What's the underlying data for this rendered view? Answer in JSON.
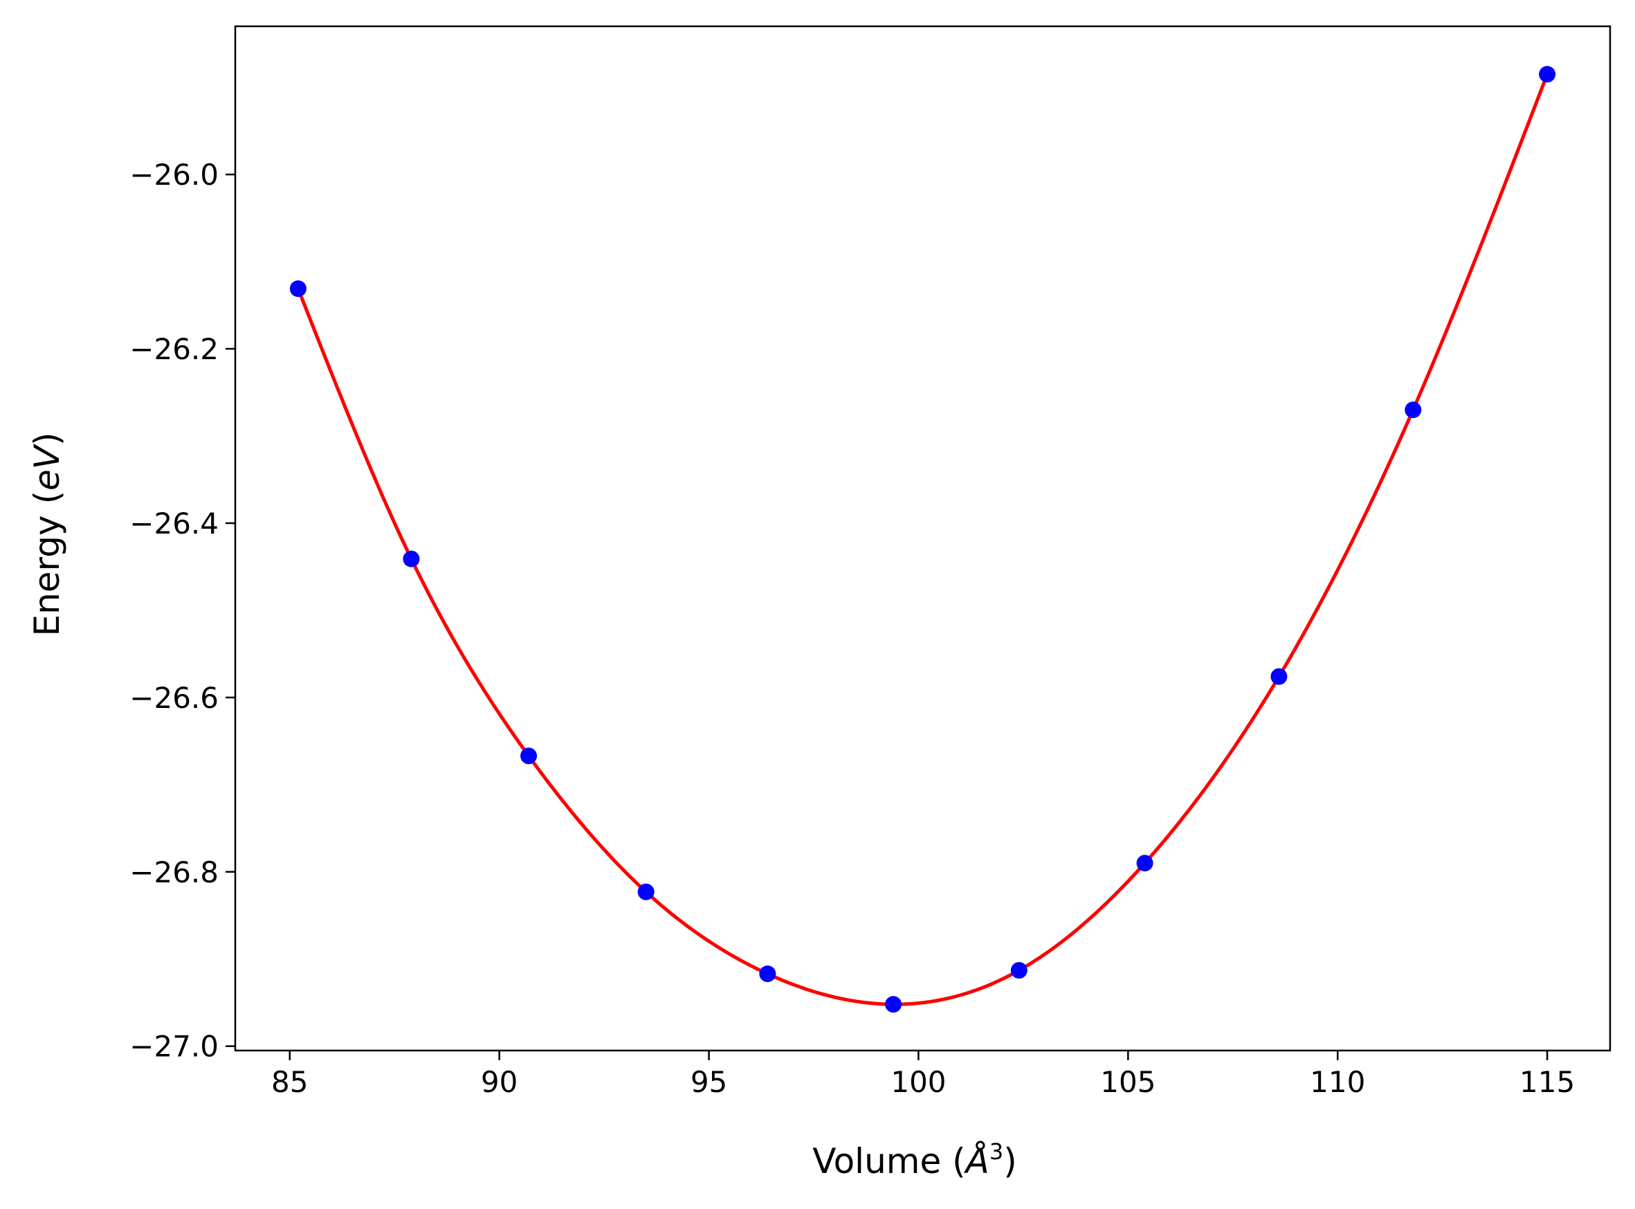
{
  "chart_data": {
    "type": "scatter",
    "title": "",
    "xlabel": {
      "prefix": "Volume (",
      "symbol": "Å",
      "superscript": "3",
      "suffix": ")"
    },
    "ylabel": {
      "prefix": "Energy (",
      "symbol": "eV",
      "suffix": ")"
    },
    "xlim": [
      83.7,
      116.5
    ],
    "ylim": [
      -27.005,
      -25.83
    ],
    "xticks": [
      85,
      90,
      95,
      100,
      105,
      110,
      115
    ],
    "xtick_labels": [
      "85",
      "90",
      "95",
      "100",
      "105",
      "110",
      "115"
    ],
    "yticks": [
      -26.0,
      -26.2,
      -26.4,
      -26.6,
      -26.8,
      -27.0
    ],
    "ytick_labels": [
      "−26.0",
      "−26.2",
      "−26.4",
      "−26.6",
      "−26.8",
      "−27.0"
    ],
    "grid": false,
    "series": [
      {
        "kind": "scatter",
        "color": "#0000ff",
        "x": [
          85.2,
          87.9,
          90.7,
          93.5,
          96.4,
          99.4,
          102.4,
          105.4,
          108.6,
          111.8,
          115.0
        ],
        "y": [
          -26.131,
          -26.441,
          -26.667,
          -26.823,
          -26.917,
          -26.952,
          -26.913,
          -26.79,
          -26.576,
          -26.27,
          -25.885
        ]
      },
      {
        "kind": "line",
        "color": "#ff0000",
        "x": [
          85.2,
          87.9,
          90.7,
          93.5,
          96.4,
          99.4,
          102.4,
          105.4,
          108.6,
          111.8,
          115.0
        ],
        "y": [
          -26.131,
          -26.441,
          -26.667,
          -26.823,
          -26.917,
          -26.952,
          -26.913,
          -26.79,
          -26.576,
          -26.27,
          -25.885
        ]
      }
    ]
  }
}
